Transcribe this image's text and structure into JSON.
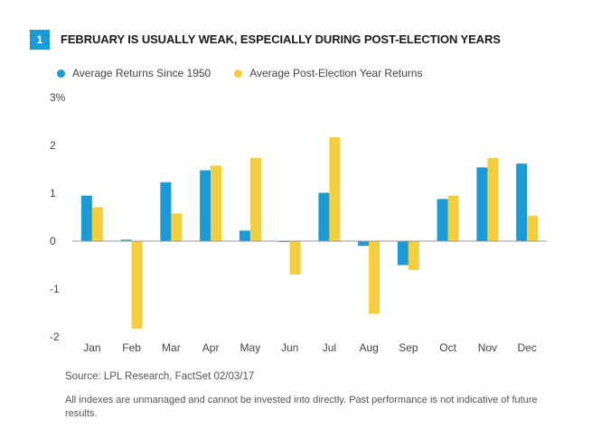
{
  "figure": {
    "number": "1",
    "title": "FEBRUARY IS USUALLY WEAK, ESPECIALLY DURING POST-ELECTION YEARS"
  },
  "source": "Source: LPL Research, FactSet   02/03/17",
  "disclaimer": "All indexes are unmanaged and cannot be invested into directly. Past performance is not indicative of future results.",
  "colors": {
    "series1": "#1a9ad6",
    "series2": "#f5cf3b",
    "zero_line": "#999999"
  },
  "chart_data": {
    "type": "bar",
    "categories": [
      "Jan",
      "Feb",
      "Mar",
      "Apr",
      "May",
      "Jun",
      "Jul",
      "Aug",
      "Sep",
      "Oct",
      "Nov",
      "Dec"
    ],
    "series": [
      {
        "name": "Average Returns Since 1950",
        "values": [
          0.95,
          0.03,
          1.23,
          1.48,
          0.22,
          -0.01,
          1.01,
          -0.1,
          -0.5,
          0.88,
          1.54,
          1.62
        ]
      },
      {
        "name": "Average Post-Election Year Returns",
        "values": [
          0.71,
          -1.83,
          0.58,
          1.58,
          1.74,
          -0.7,
          2.17,
          -1.52,
          -0.6,
          0.95,
          1.74,
          0.53
        ]
      }
    ],
    "yticks": [
      "3%",
      "2",
      "1",
      "0",
      "-1",
      "-2"
    ],
    "ylim": [
      -2,
      3
    ],
    "legend_position": "top-left",
    "grid": false
  }
}
